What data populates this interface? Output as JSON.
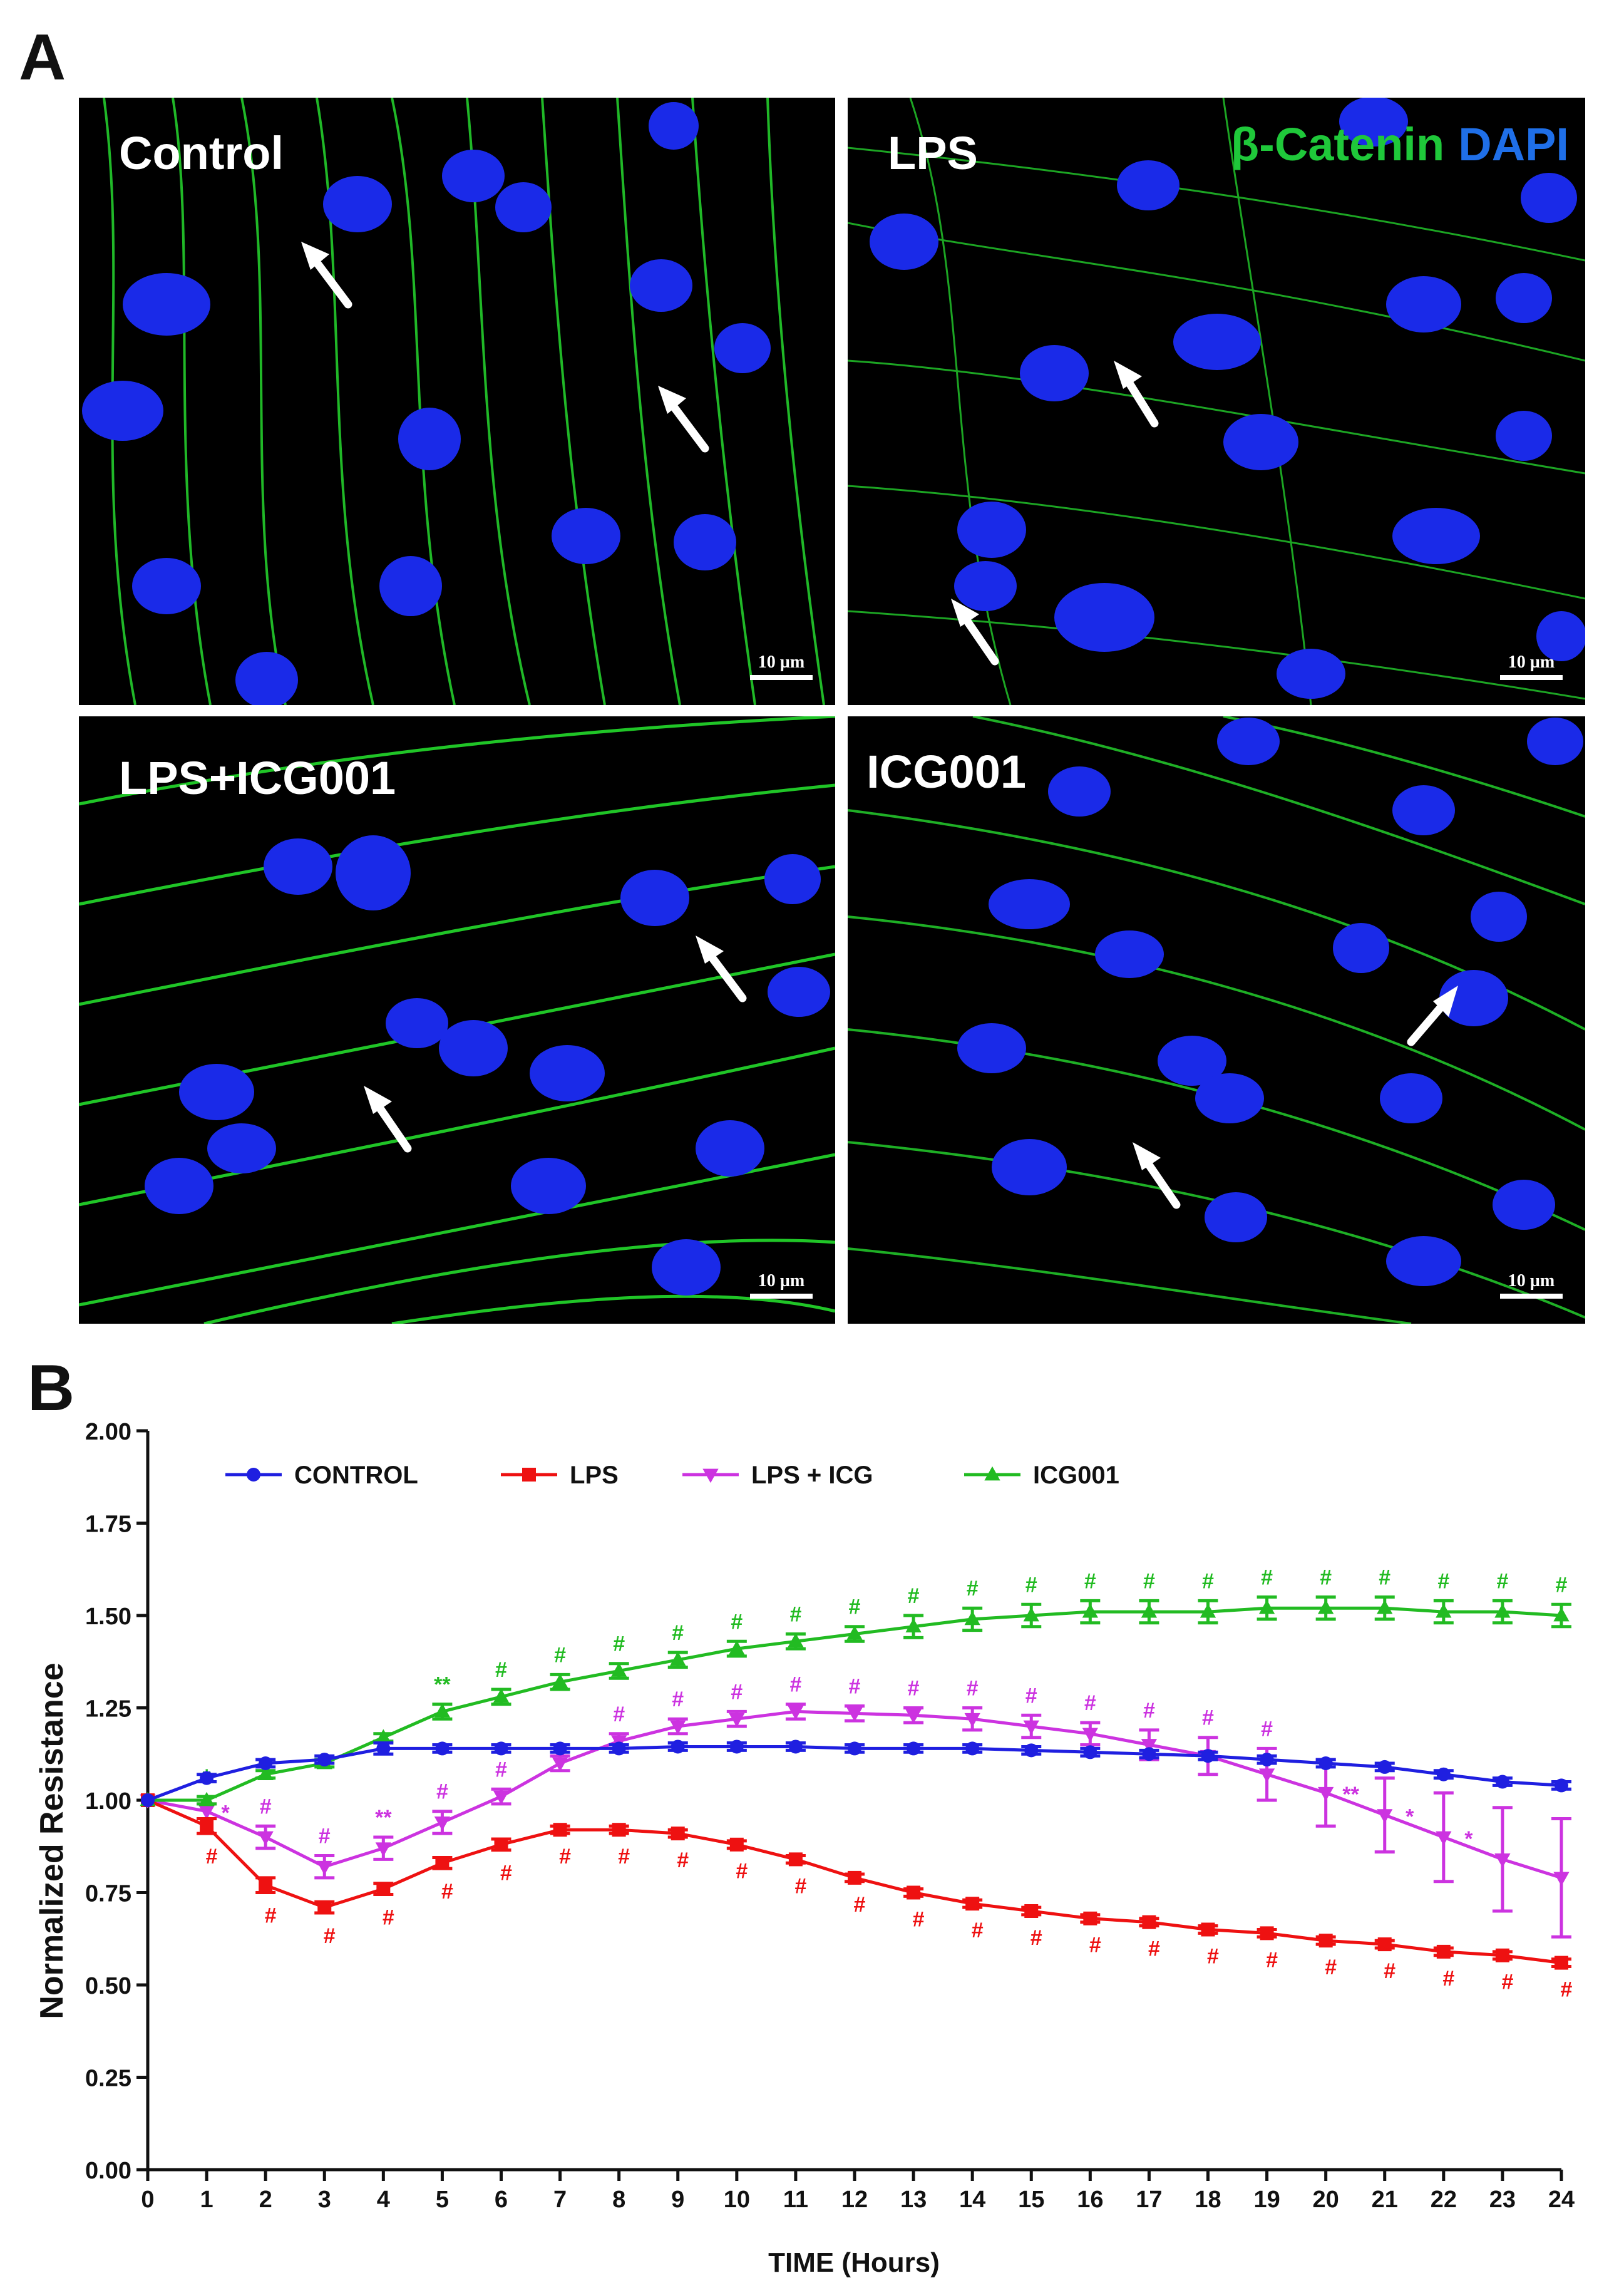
{
  "panel_labels": {
    "a": "A",
    "b": "B"
  },
  "micrographs": [
    {
      "label": "Control",
      "scale_text": "10 µm"
    },
    {
      "label": "LPS",
      "scale_text": "10 µm"
    },
    {
      "label": "LPS+ICG001",
      "scale_text": "10 µm"
    },
    {
      "label": "ICG001",
      "scale_text": "10 µm"
    }
  ],
  "stain_legend": {
    "green_label": "β-Catenin",
    "blue_label": "DAPI",
    "green_color": "#1fc83a",
    "blue_color": "#1f6fe8"
  },
  "chart_data": {
    "type": "line",
    "title": "",
    "xlabel": "TIME (Hours)",
    "ylabel": "Normalized Resistance",
    "xlim": [
      0,
      24
    ],
    "ylim": [
      0,
      2.0
    ],
    "yticks": [
      "0.00",
      "0.25",
      "0.50",
      "0.75",
      "1.00",
      "1.25",
      "1.50",
      "1.75",
      "2.00"
    ],
    "xticks": [
      "0",
      "1",
      "2",
      "3",
      "4",
      "5",
      "6",
      "7",
      "8",
      "9",
      "10",
      "11",
      "12",
      "13",
      "14",
      "15",
      "16",
      "17",
      "18",
      "19",
      "20",
      "21",
      "22",
      "23",
      "24"
    ],
    "grid": false,
    "legend_placement": "top",
    "series": [
      {
        "name": "CONTROL",
        "color": "#1f1fe0",
        "marker": "circle",
        "values": [
          1.0,
          1.06,
          1.1,
          1.11,
          1.14,
          1.14,
          1.14,
          1.14,
          1.14,
          1.145,
          1.145,
          1.145,
          1.14,
          1.14,
          1.14,
          1.135,
          1.13,
          1.125,
          1.12,
          1.11,
          1.1,
          1.09,
          1.07,
          1.05,
          1.04
        ],
        "errors": [
          0,
          0.01,
          0.01,
          0.01,
          0.015,
          0.01,
          0.01,
          0.01,
          0.01,
          0.01,
          0.01,
          0.01,
          0.01,
          0.01,
          0.01,
          0.01,
          0.01,
          0.01,
          0.01,
          0.01,
          0.01,
          0.01,
          0.01,
          0.01,
          0.01
        ],
        "annotations": []
      },
      {
        "name": "LPS",
        "color": "#ee1111",
        "marker": "square",
        "values": [
          1.0,
          0.93,
          0.77,
          0.71,
          0.76,
          0.83,
          0.88,
          0.92,
          0.92,
          0.91,
          0.88,
          0.84,
          0.79,
          0.75,
          0.72,
          0.7,
          0.68,
          0.67,
          0.65,
          0.64,
          0.62,
          0.61,
          0.59,
          0.58,
          0.56
        ],
        "errors": [
          0,
          0.02,
          0.02,
          0.015,
          0.015,
          0.015,
          0.015,
          0.01,
          0.01,
          0.01,
          0.01,
          0.01,
          0.01,
          0.01,
          0.01,
          0.01,
          0.01,
          0.01,
          0.01,
          0.01,
          0.01,
          0.01,
          0.01,
          0.01,
          0.01
        ],
        "annotations": [
          "",
          "#",
          "#",
          "#",
          "#",
          "#",
          "#",
          "#",
          "#",
          "#",
          "#",
          "#",
          "#",
          "#",
          "#",
          "#",
          "#",
          "#",
          "#",
          "#",
          "#",
          "#",
          "#",
          "#",
          "#"
        ]
      },
      {
        "name": "LPS + ICG",
        "color": "#cc33e0",
        "marker": "triangle-down",
        "values": [
          1.0,
          0.97,
          0.9,
          0.82,
          0.87,
          0.94,
          1.01,
          1.1,
          1.16,
          1.2,
          1.22,
          1.24,
          1.235,
          1.23,
          1.22,
          1.2,
          1.18,
          1.15,
          1.12,
          1.07,
          1.02,
          0.96,
          0.9,
          0.84,
          0.79
        ],
        "errors": [
          0,
          0.02,
          0.03,
          0.03,
          0.03,
          0.03,
          0.02,
          0.02,
          0.02,
          0.02,
          0.02,
          0.02,
          0.02,
          0.02,
          0.03,
          0.03,
          0.03,
          0.04,
          0.05,
          0.07,
          0.09,
          0.1,
          0.12,
          0.14,
          0.16
        ],
        "annotations": [
          "",
          "*",
          "#",
          "#",
          "**",
          "#",
          "#",
          "",
          "#",
          "#",
          "#",
          "#",
          "#",
          "#",
          "#",
          "#",
          "#",
          "#",
          "#",
          "#",
          "**",
          "*",
          "*",
          "",
          ""
        ]
      },
      {
        "name": "ICG001",
        "color": "#22bb22",
        "marker": "triangle-up",
        "values": [
          1.0,
          1.0,
          1.07,
          1.1,
          1.17,
          1.24,
          1.28,
          1.32,
          1.35,
          1.38,
          1.41,
          1.43,
          1.45,
          1.47,
          1.49,
          1.5,
          1.51,
          1.51,
          1.51,
          1.52,
          1.52,
          1.52,
          1.51,
          1.51,
          1.5
        ],
        "errors": [
          0,
          0.01,
          0.01,
          0.01,
          0.01,
          0.02,
          0.02,
          0.02,
          0.02,
          0.02,
          0.02,
          0.02,
          0.02,
          0.03,
          0.03,
          0.03,
          0.03,
          0.03,
          0.03,
          0.03,
          0.03,
          0.03,
          0.03,
          0.03,
          0.03
        ],
        "annotations": [
          "",
          "*",
          "",
          "",
          "",
          "**",
          "#",
          "#",
          "#",
          "#",
          "#",
          "#",
          "#",
          "#",
          "#",
          "#",
          "#",
          "#",
          "#",
          "#",
          "#",
          "#",
          "#",
          "#",
          "#"
        ]
      }
    ]
  }
}
